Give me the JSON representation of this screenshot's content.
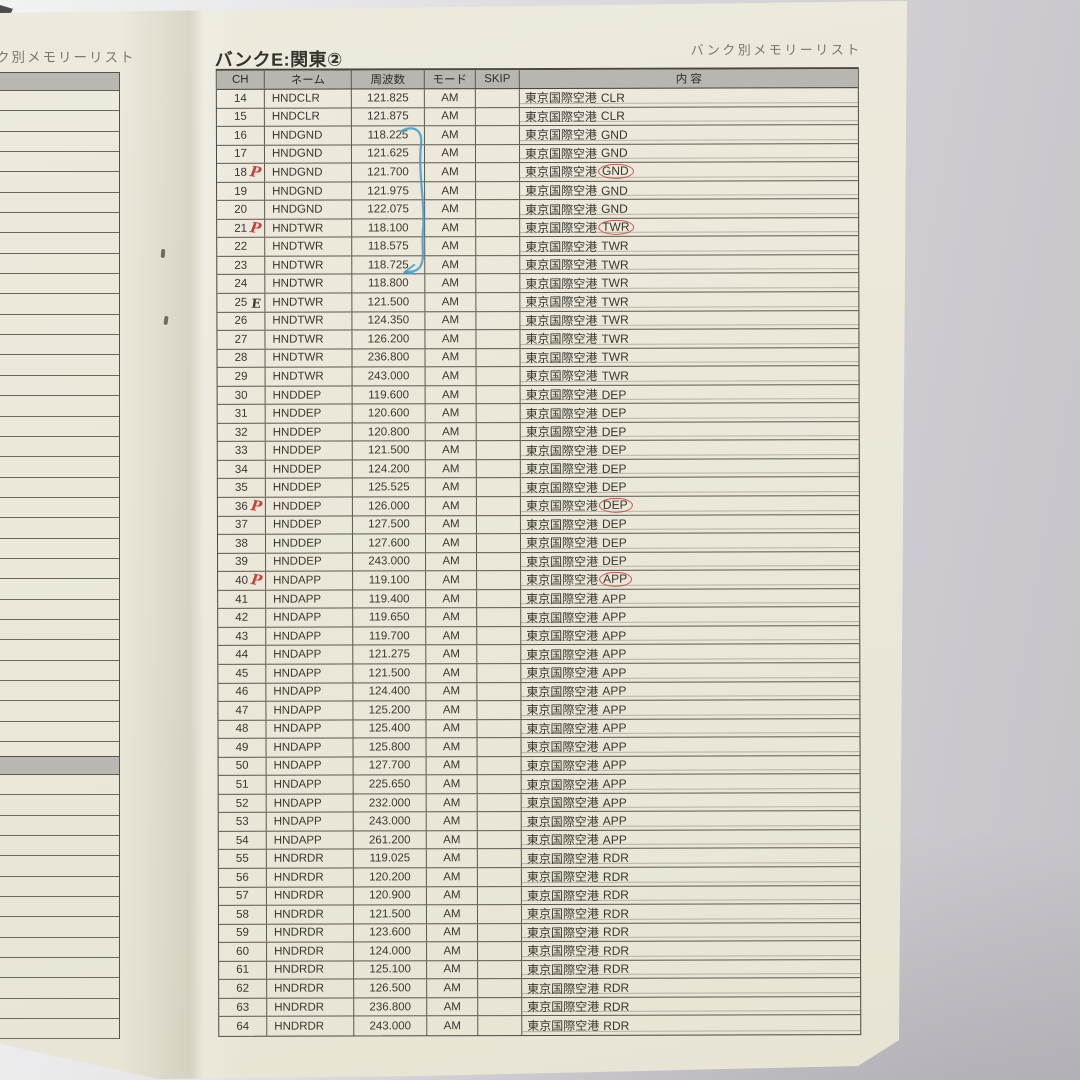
{
  "page": {
    "left_header_partial": "ク別メモリーリスト",
    "right_header": "バンク別メモリーリスト",
    "title": "バンクE:関東②"
  },
  "table": {
    "columns": {
      "ch": "CH",
      "name": "ネーム",
      "freq": "周波数",
      "mode": "モード",
      "skip": "SKIP",
      "content": "内 容"
    },
    "rows": [
      {
        "ch": "14",
        "name": "HNDCLR",
        "freq": "121.825",
        "mode": "AM",
        "skip": "",
        "place": "東京国際空港",
        "suffix": "CLR",
        "mark": "",
        "circled": false
      },
      {
        "ch": "15",
        "name": "HNDCLR",
        "freq": "121.875",
        "mode": "AM",
        "skip": "",
        "place": "東京国際空港",
        "suffix": "CLR",
        "mark": "",
        "circled": false
      },
      {
        "ch": "16",
        "name": "HNDGND",
        "freq": "118.225",
        "mode": "AM",
        "skip": "",
        "place": "東京国際空港",
        "suffix": "GND",
        "mark": "",
        "circled": false
      },
      {
        "ch": "17",
        "name": "HNDGND",
        "freq": "121.625",
        "mode": "AM",
        "skip": "",
        "place": "東京国際空港",
        "suffix": "GND",
        "mark": "",
        "circled": false
      },
      {
        "ch": "18",
        "name": "HNDGND",
        "freq": "121.700",
        "mode": "AM",
        "skip": "",
        "place": "東京国際空港",
        "suffix": "GND",
        "mark": "P",
        "circled": true
      },
      {
        "ch": "19",
        "name": "HNDGND",
        "freq": "121.975",
        "mode": "AM",
        "skip": "",
        "place": "東京国際空港",
        "suffix": "GND",
        "mark": "",
        "circled": false
      },
      {
        "ch": "20",
        "name": "HNDGND",
        "freq": "122.075",
        "mode": "AM",
        "skip": "",
        "place": "東京国際空港",
        "suffix": "GND",
        "mark": "",
        "circled": false
      },
      {
        "ch": "21",
        "name": "HNDTWR",
        "freq": "118.100",
        "mode": "AM",
        "skip": "",
        "place": "東京国際空港",
        "suffix": "TWR",
        "mark": "P",
        "circled": true
      },
      {
        "ch": "22",
        "name": "HNDTWR",
        "freq": "118.575",
        "mode": "AM",
        "skip": "",
        "place": "東京国際空港",
        "suffix": "TWR",
        "mark": "",
        "circled": false
      },
      {
        "ch": "23",
        "name": "HNDTWR",
        "freq": "118.725",
        "mode": "AM",
        "skip": "",
        "place": "東京国際空港",
        "suffix": "TWR",
        "mark": "",
        "circled": false
      },
      {
        "ch": "24",
        "name": "HNDTWR",
        "freq": "118.800",
        "mode": "AM",
        "skip": "",
        "place": "東京国際空港",
        "suffix": "TWR",
        "mark": "",
        "circled": false
      },
      {
        "ch": "25",
        "name": "HNDTWR",
        "freq": "121.500",
        "mode": "AM",
        "skip": "",
        "place": "東京国際空港",
        "suffix": "TWR",
        "mark": "E",
        "circled": false
      },
      {
        "ch": "26",
        "name": "HNDTWR",
        "freq": "124.350",
        "mode": "AM",
        "skip": "",
        "place": "東京国際空港",
        "suffix": "TWR",
        "mark": "",
        "circled": false
      },
      {
        "ch": "27",
        "name": "HNDTWR",
        "freq": "126.200",
        "mode": "AM",
        "skip": "",
        "place": "東京国際空港",
        "suffix": "TWR",
        "mark": "",
        "circled": false
      },
      {
        "ch": "28",
        "name": "HNDTWR",
        "freq": "236.800",
        "mode": "AM",
        "skip": "",
        "place": "東京国際空港",
        "suffix": "TWR",
        "mark": "",
        "circled": false
      },
      {
        "ch": "29",
        "name": "HNDTWR",
        "freq": "243.000",
        "mode": "AM",
        "skip": "",
        "place": "東京国際空港",
        "suffix": "TWR",
        "mark": "",
        "circled": false
      },
      {
        "ch": "30",
        "name": "HNDDEP",
        "freq": "119.600",
        "mode": "AM",
        "skip": "",
        "place": "東京国際空港",
        "suffix": "DEP",
        "mark": "",
        "circled": false
      },
      {
        "ch": "31",
        "name": "HNDDEP",
        "freq": "120.600",
        "mode": "AM",
        "skip": "",
        "place": "東京国際空港",
        "suffix": "DEP",
        "mark": "",
        "circled": false
      },
      {
        "ch": "32",
        "name": "HNDDEP",
        "freq": "120.800",
        "mode": "AM",
        "skip": "",
        "place": "東京国際空港",
        "suffix": "DEP",
        "mark": "",
        "circled": false
      },
      {
        "ch": "33",
        "name": "HNDDEP",
        "freq": "121.500",
        "mode": "AM",
        "skip": "",
        "place": "東京国際空港",
        "suffix": "DEP",
        "mark": "",
        "circled": false
      },
      {
        "ch": "34",
        "name": "HNDDEP",
        "freq": "124.200",
        "mode": "AM",
        "skip": "",
        "place": "東京国際空港",
        "suffix": "DEP",
        "mark": "",
        "circled": false
      },
      {
        "ch": "35",
        "name": "HNDDEP",
        "freq": "125.525",
        "mode": "AM",
        "skip": "",
        "place": "東京国際空港",
        "suffix": "DEP",
        "mark": "",
        "circled": false
      },
      {
        "ch": "36",
        "name": "HNDDEP",
        "freq": "126.000",
        "mode": "AM",
        "skip": "",
        "place": "東京国際空港",
        "suffix": "DEP",
        "mark": "P",
        "circled": true
      },
      {
        "ch": "37",
        "name": "HNDDEP",
        "freq": "127.500",
        "mode": "AM",
        "skip": "",
        "place": "東京国際空港",
        "suffix": "DEP",
        "mark": "",
        "circled": false
      },
      {
        "ch": "38",
        "name": "HNDDEP",
        "freq": "127.600",
        "mode": "AM",
        "skip": "",
        "place": "東京国際空港",
        "suffix": "DEP",
        "mark": "",
        "circled": false
      },
      {
        "ch": "39",
        "name": "HNDDEP",
        "freq": "243.000",
        "mode": "AM",
        "skip": "",
        "place": "東京国際空港",
        "suffix": "DEP",
        "mark": "",
        "circled": false
      },
      {
        "ch": "40",
        "name": "HNDAPP",
        "freq": "119.100",
        "mode": "AM",
        "skip": "",
        "place": "東京国際空港",
        "suffix": "APP",
        "mark": "P",
        "circled": true
      },
      {
        "ch": "41",
        "name": "HNDAPP",
        "freq": "119.400",
        "mode": "AM",
        "skip": "",
        "place": "東京国際空港",
        "suffix": "APP",
        "mark": "",
        "circled": false
      },
      {
        "ch": "42",
        "name": "HNDAPP",
        "freq": "119.650",
        "mode": "AM",
        "skip": "",
        "place": "東京国際空港",
        "suffix": "APP",
        "mark": "",
        "circled": false
      },
      {
        "ch": "43",
        "name": "HNDAPP",
        "freq": "119.700",
        "mode": "AM",
        "skip": "",
        "place": "東京国際空港",
        "suffix": "APP",
        "mark": "",
        "circled": false
      },
      {
        "ch": "44",
        "name": "HNDAPP",
        "freq": "121.275",
        "mode": "AM",
        "skip": "",
        "place": "東京国際空港",
        "suffix": "APP",
        "mark": "",
        "circled": false
      },
      {
        "ch": "45",
        "name": "HNDAPP",
        "freq": "121.500",
        "mode": "AM",
        "skip": "",
        "place": "東京国際空港",
        "suffix": "APP",
        "mark": "",
        "circled": false
      },
      {
        "ch": "46",
        "name": "HNDAPP",
        "freq": "124.400",
        "mode": "AM",
        "skip": "",
        "place": "東京国際空港",
        "suffix": "APP",
        "mark": "",
        "circled": false
      },
      {
        "ch": "47",
        "name": "HNDAPP",
        "freq": "125.200",
        "mode": "AM",
        "skip": "",
        "place": "東京国際空港",
        "suffix": "APP",
        "mark": "",
        "circled": false
      },
      {
        "ch": "48",
        "name": "HNDAPP",
        "freq": "125.400",
        "mode": "AM",
        "skip": "",
        "place": "東京国際空港",
        "suffix": "APP",
        "mark": "",
        "circled": false
      },
      {
        "ch": "49",
        "name": "HNDAPP",
        "freq": "125.800",
        "mode": "AM",
        "skip": "",
        "place": "東京国際空港",
        "suffix": "APP",
        "mark": "",
        "circled": false
      },
      {
        "ch": "50",
        "name": "HNDAPP",
        "freq": "127.700",
        "mode": "AM",
        "skip": "",
        "place": "東京国際空港",
        "suffix": "APP",
        "mark": "",
        "circled": false
      },
      {
        "ch": "51",
        "name": "HNDAPP",
        "freq": "225.650",
        "mode": "AM",
        "skip": "",
        "place": "東京国際空港",
        "suffix": "APP",
        "mark": "",
        "circled": false
      },
      {
        "ch": "52",
        "name": "HNDAPP",
        "freq": "232.000",
        "mode": "AM",
        "skip": "",
        "place": "東京国際空港",
        "suffix": "APP",
        "mark": "",
        "circled": false
      },
      {
        "ch": "53",
        "name": "HNDAPP",
        "freq": "243.000",
        "mode": "AM",
        "skip": "",
        "place": "東京国際空港",
        "suffix": "APP",
        "mark": "",
        "circled": false
      },
      {
        "ch": "54",
        "name": "HNDAPP",
        "freq": "261.200",
        "mode": "AM",
        "skip": "",
        "place": "東京国際空港",
        "suffix": "APP",
        "mark": "",
        "circled": false
      },
      {
        "ch": "55",
        "name": "HNDRDR",
        "freq": "119.025",
        "mode": "AM",
        "skip": "",
        "place": "東京国際空港",
        "suffix": "RDR",
        "mark": "",
        "circled": false
      },
      {
        "ch": "56",
        "name": "HNDRDR",
        "freq": "120.200",
        "mode": "AM",
        "skip": "",
        "place": "東京国際空港",
        "suffix": "RDR",
        "mark": "",
        "circled": false
      },
      {
        "ch": "57",
        "name": "HNDRDR",
        "freq": "120.900",
        "mode": "AM",
        "skip": "",
        "place": "東京国際空港",
        "suffix": "RDR",
        "mark": "",
        "circled": false
      },
      {
        "ch": "58",
        "name": "HNDRDR",
        "freq": "121.500",
        "mode": "AM",
        "skip": "",
        "place": "東京国際空港",
        "suffix": "RDR",
        "mark": "",
        "circled": false
      },
      {
        "ch": "59",
        "name": "HNDRDR",
        "freq": "123.600",
        "mode": "AM",
        "skip": "",
        "place": "東京国際空港",
        "suffix": "RDR",
        "mark": "",
        "circled": false
      },
      {
        "ch": "60",
        "name": "HNDRDR",
        "freq": "124.000",
        "mode": "AM",
        "skip": "",
        "place": "東京国際空港",
        "suffix": "RDR",
        "mark": "",
        "circled": false
      },
      {
        "ch": "61",
        "name": "HNDRDR",
        "freq": "125.100",
        "mode": "AM",
        "skip": "",
        "place": "東京国際空港",
        "suffix": "RDR",
        "mark": "",
        "circled": false
      },
      {
        "ch": "62",
        "name": "HNDRDR",
        "freq": "126.500",
        "mode": "AM",
        "skip": "",
        "place": "東京国際空港",
        "suffix": "RDR",
        "mark": "",
        "circled": false
      },
      {
        "ch": "63",
        "name": "HNDRDR",
        "freq": "236.800",
        "mode": "AM",
        "skip": "",
        "place": "東京国際空港",
        "suffix": "RDR",
        "mark": "",
        "circled": false
      },
      {
        "ch": "64",
        "name": "HNDRDR",
        "freq": "243.000",
        "mode": "AM",
        "skip": "",
        "place": "東京国際空港",
        "suffix": "RDR",
        "mark": "",
        "circled": false
      }
    ]
  },
  "annotations": {
    "handwritten_marks": "red P at CH 18, 21, 36, 40; dark E at CH 25",
    "red_circles_around": [
      "GND",
      "TWR",
      "DEP",
      "APP"
    ],
    "blue_arrow": "pen arrow from 118.225 (CH16) down to 118.725 (CH23)",
    "red_color": "#c6423b",
    "blue_color": "#45a0cb"
  },
  "layout_colors": {
    "paper": "#ebe8da",
    "header_band": "#b8b6b0",
    "grid_line": "#5b594f",
    "desk": "#ceccd1"
  }
}
